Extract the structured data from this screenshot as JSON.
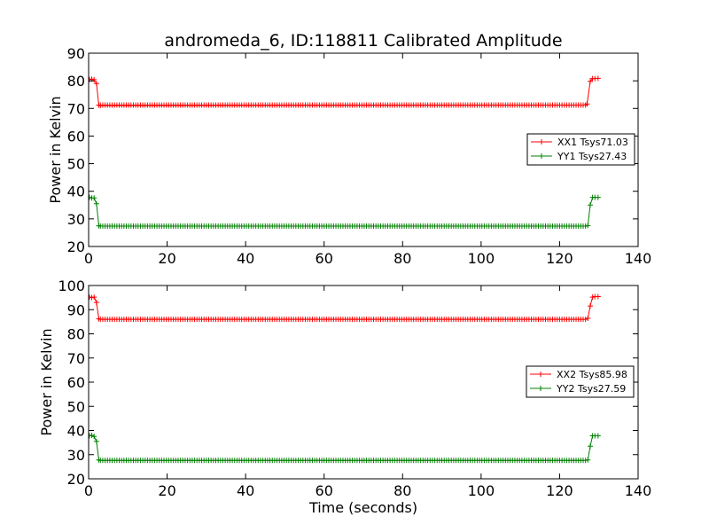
{
  "chart_data": [
    {
      "type": "line",
      "title": "andromeda_6, ID:118811 Calibrated Amplitude",
      "xlabel": "",
      "ylabel": "Power in Kelvin",
      "xlim": [
        0,
        140
      ],
      "ylim": [
        20,
        90
      ],
      "xticks": [
        "0",
        "20",
        "40",
        "60",
        "80",
        "100",
        "120",
        "140"
      ],
      "yticks": [
        "20",
        "30",
        "40",
        "50",
        "60",
        "70",
        "80",
        "90"
      ],
      "legend_position": "center-right",
      "grid": false,
      "series": [
        {
          "name": "XX1 Tsys71.03",
          "color": "#ff0000",
          "marker": "plus",
          "points": [
            [
              0.2,
              80.5
            ],
            [
              0.8,
              80.6
            ],
            [
              1.4,
              80.4
            ],
            [
              2.0,
              79.0
            ],
            [
              2.6,
              71.2
            ],
            [
              3.0,
              71.0
            ],
            [
              126.6,
              71.2
            ],
            [
              127.0,
              71.6
            ],
            [
              127.8,
              79.8
            ],
            [
              128.4,
              80.8
            ],
            [
              129.0,
              80.8
            ],
            [
              129.8,
              80.9
            ]
          ],
          "flat": {
            "x_start": 3.0,
            "x_end": 126.6,
            "y": 71.2
          }
        },
        {
          "name": "YY1 Tsys27.43",
          "color": "#008000",
          "marker": "plus",
          "points": [
            [
              0.2,
              37.8
            ],
            [
              0.8,
              37.6
            ],
            [
              1.4,
              37.6
            ],
            [
              2.0,
              35.5
            ],
            [
              2.6,
              27.5
            ],
            [
              3.0,
              27.4
            ],
            [
              126.6,
              27.4
            ],
            [
              127.2,
              27.6
            ],
            [
              127.8,
              35.0
            ],
            [
              128.4,
              37.8
            ],
            [
              129.0,
              37.8
            ],
            [
              129.8,
              37.8
            ]
          ],
          "flat": {
            "x_start": 3.0,
            "x_end": 126.6,
            "y": 27.4
          }
        }
      ]
    },
    {
      "type": "line",
      "title": "",
      "xlabel": "Time (seconds)",
      "ylabel": "Power in Kelvin",
      "xlim": [
        0,
        140
      ],
      "ylim": [
        20,
        100
      ],
      "xticks": [
        "0",
        "20",
        "40",
        "60",
        "80",
        "100",
        "120",
        "140"
      ],
      "yticks": [
        "20",
        "30",
        "40",
        "50",
        "60",
        "70",
        "80",
        "90",
        "100"
      ],
      "legend_position": "center-right",
      "grid": false,
      "series": [
        {
          "name": "XX2 Tsys85.98",
          "color": "#ff0000",
          "marker": "plus",
          "points": [
            [
              0.2,
              95.2
            ],
            [
              0.8,
              95.0
            ],
            [
              1.4,
              95.2
            ],
            [
              2.0,
              93.0
            ],
            [
              2.6,
              86.2
            ],
            [
              3.0,
              86.0
            ],
            [
              126.6,
              86.0
            ],
            [
              127.2,
              86.4
            ],
            [
              127.8,
              91.5
            ],
            [
              128.4,
              95.2
            ],
            [
              129.0,
              95.4
            ],
            [
              129.8,
              95.4
            ]
          ],
          "flat": {
            "x_start": 3.0,
            "x_end": 126.6,
            "y": 86.0
          }
        },
        {
          "name": "YY2 Tsys27.59",
          "color": "#008000",
          "marker": "plus",
          "points": [
            [
              0.2,
              37.8
            ],
            [
              0.8,
              38.0
            ],
            [
              1.4,
              37.5
            ],
            [
              2.0,
              35.5
            ],
            [
              2.6,
              27.8
            ],
            [
              3.0,
              27.6
            ],
            [
              126.6,
              27.6
            ],
            [
              127.2,
              27.8
            ],
            [
              127.8,
              33.5
            ],
            [
              128.4,
              37.8
            ],
            [
              129.0,
              37.8
            ],
            [
              129.8,
              37.8
            ]
          ],
          "flat": {
            "x_start": 3.0,
            "x_end": 126.6,
            "y": 27.6
          }
        }
      ]
    }
  ]
}
